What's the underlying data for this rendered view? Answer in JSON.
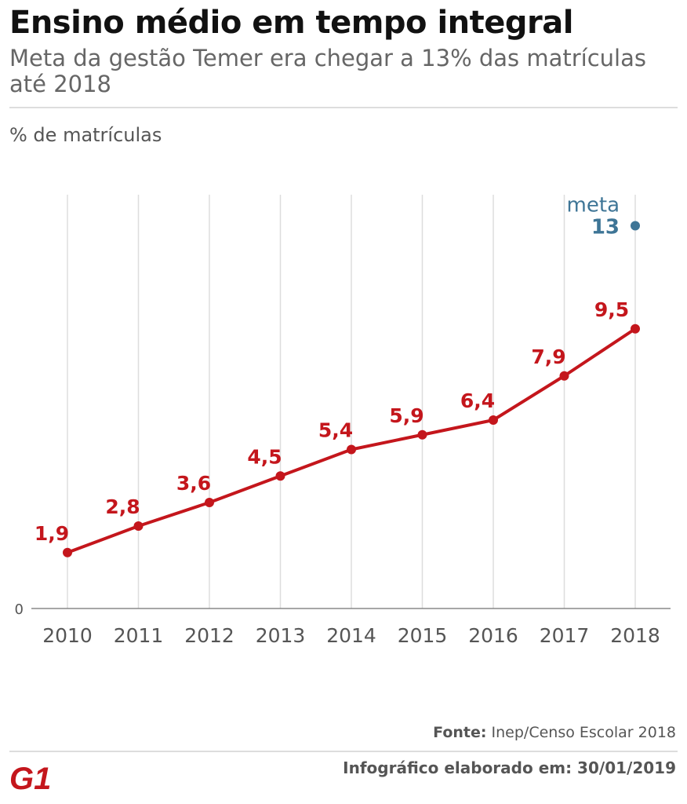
{
  "header": {
    "title": "Ensino médio em tempo integral",
    "subtitle": "Meta da gestão Temer era chegar a 13% das matrículas até 2018"
  },
  "chart_data": {
    "type": "line",
    "title": "Ensino médio em tempo integral",
    "subtitle": "Meta da gestão Temer era chegar a 13% das matrículas até 2018",
    "ylabel": "% de matrículas",
    "xlabel": "",
    "categories": [
      "2010",
      "2011",
      "2012",
      "2013",
      "2014",
      "2015",
      "2016",
      "2017",
      "2018"
    ],
    "series": [
      {
        "values": [
          1.9,
          2.8,
          3.6,
          4.5,
          5.4,
          5.9,
          6.4,
          7.9,
          9.5
        ],
        "labels": [
          "1,9",
          "2,8",
          "3,6",
          "4,5",
          "5,4",
          "5,9",
          "6,4",
          "7,9",
          "9,5"
        ],
        "color": "#c4161c"
      }
    ],
    "target": {
      "label": "meta",
      "value": 13,
      "value_label": "13",
      "x": "2018",
      "color": "#3e7596"
    },
    "y_tick_labels": [
      "0"
    ],
    "ylim": [
      0,
      13.5
    ],
    "grid": "vertical",
    "legend": "none"
  },
  "footer": {
    "source_label": "Fonte:",
    "source_text": "Inep/Censo Escolar 2018",
    "credit": "Infográfico elaborado em: 30/01/2019",
    "logo_text": "G1",
    "logo_color": "#c4161c"
  }
}
